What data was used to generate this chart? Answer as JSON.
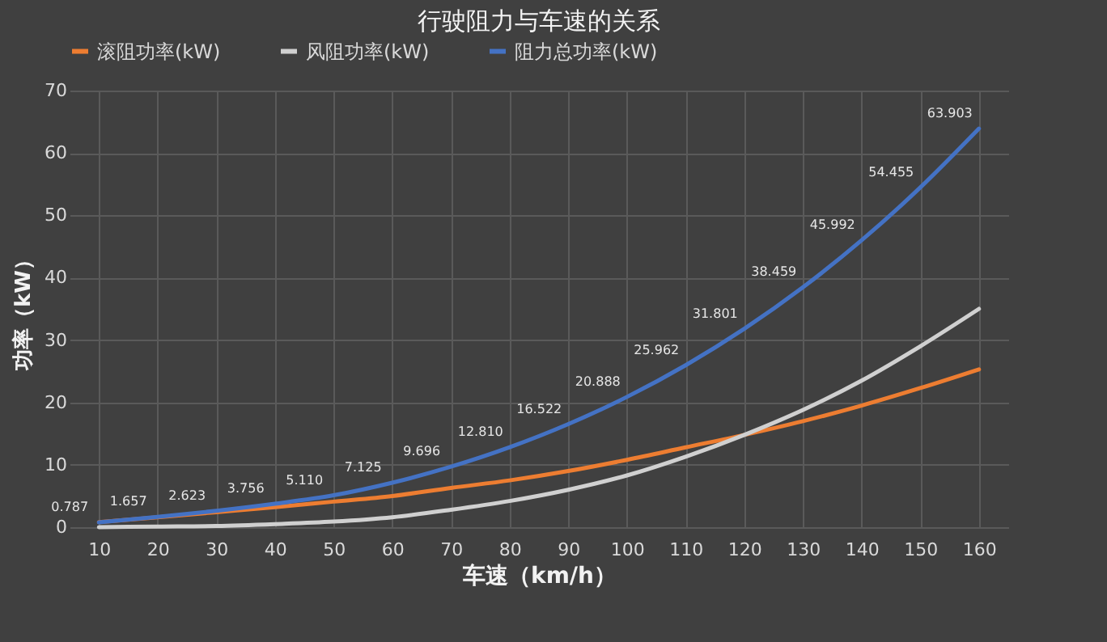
{
  "chart_data": {
    "type": "line",
    "title": "行驶阻力与车速的关系",
    "xlabel": "车速（km/h）",
    "ylabel": "功率（kW）",
    "categories": [
      "10",
      "20",
      "30",
      "40",
      "50",
      "60",
      "70",
      "80",
      "90",
      "100",
      "110",
      "120",
      "130",
      "140",
      "150",
      "160"
    ],
    "ylim": [
      0,
      70
    ],
    "yticks": [
      0,
      10,
      20,
      30,
      40,
      50,
      60,
      70
    ],
    "grid": true,
    "legend": "top",
    "marker": "none",
    "series": [
      {
        "name": "滚阻功率(kW)",
        "color": "#ed7d31",
        "values": [
          0.8,
          1.6,
          2.4,
          3.2,
          4.1,
          5.0,
          6.3,
          7.5,
          9.0,
          10.8,
          12.8,
          14.8,
          17.0,
          19.5,
          22.3,
          25.3
        ]
      },
      {
        "name": "风阻功率(kW)",
        "color": "#d0d0d0",
        "values": [
          0,
          0.1,
          0.2,
          0.5,
          0.9,
          1.6,
          2.8,
          4.2,
          6.0,
          8.3,
          11.3,
          14.8,
          18.8,
          23.5,
          29,
          35
        ]
      },
      {
        "name": "阻力总功率(kW)",
        "color": "#4472c4",
        "values": [
          0.787,
          1.657,
          2.623,
          3.756,
          5.11,
          7.125,
          9.696,
          12.81,
          16.522,
          20.888,
          25.962,
          31.801,
          38.459,
          45.992,
          54.455,
          63.903
        ],
        "value_labels": [
          "0.787",
          "1.657",
          "2.623",
          "3.756",
          "5.110",
          "7.125",
          "9.696",
          "12.810",
          "16.522",
          "20.888",
          "25.962",
          "31.801",
          "38.459",
          "45.992",
          "54.455",
          "63.903"
        ]
      }
    ]
  }
}
